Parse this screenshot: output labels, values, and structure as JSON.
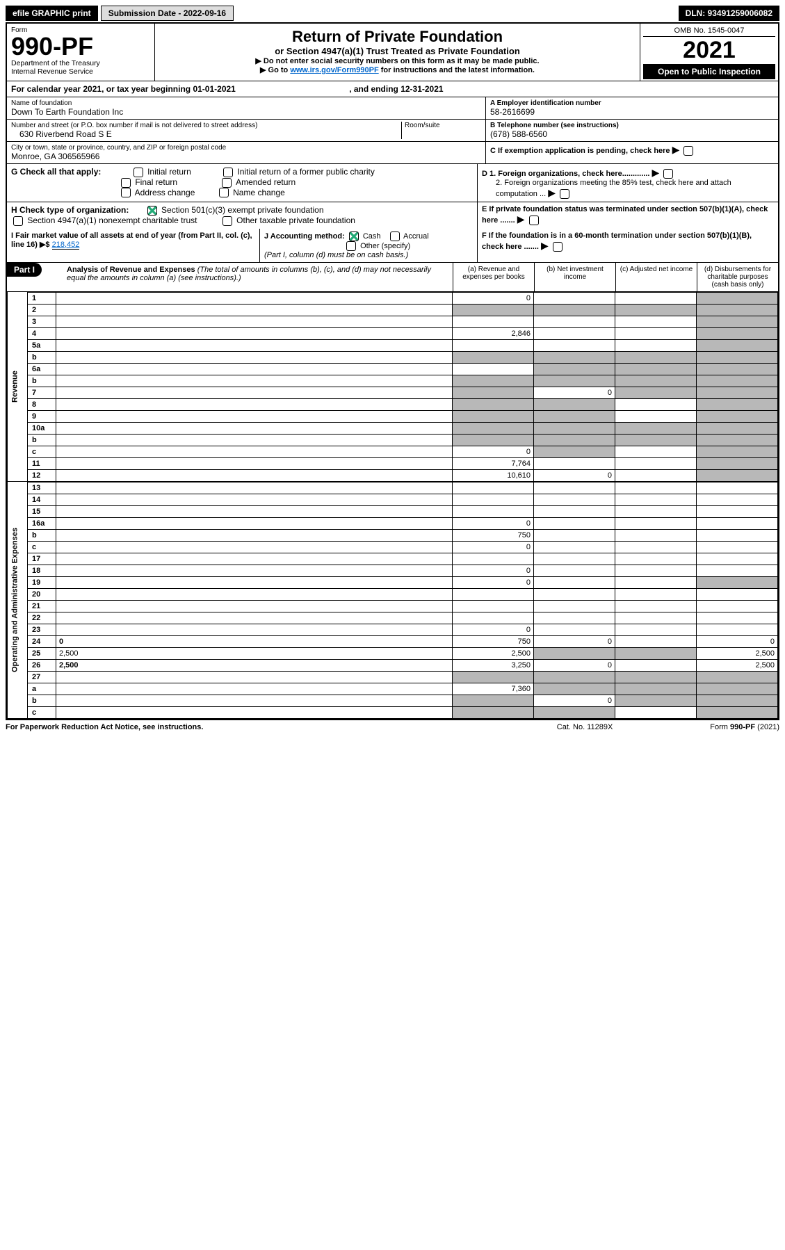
{
  "top": {
    "efile": "efile GRAPHIC print",
    "sub_label": "Submission Date - 2022-09-16",
    "dln": "DLN: 93491259006082"
  },
  "header": {
    "form_word": "Form",
    "form_no": "990-PF",
    "dept1": "Department of the Treasury",
    "dept2": "Internal Revenue Service",
    "title": "Return of Private Foundation",
    "subtitle": "or Section 4947(a)(1) Trust Treated as Private Foundation",
    "instr1": "▶ Do not enter social security numbers on this form as it may be made public.",
    "instr2_pre": "▶ Go to ",
    "instr2_link": "www.irs.gov/Form990PF",
    "instr2_post": " for instructions and the latest information.",
    "omb": "OMB No. 1545-0047",
    "year": "2021",
    "open": "Open to Public Inspection"
  },
  "cal": {
    "text_pre": "For calendar year 2021, or tax year beginning ",
    "begin": "01-01-2021",
    "mid": " , and ending ",
    "end": "12-31-2021"
  },
  "name": {
    "label": "Name of foundation",
    "value": "Down To Earth Foundation Inc"
  },
  "addr": {
    "label": "Number and street (or P.O. box number if mail is not delivered to street address)",
    "value": "630 Riverbend Road S E",
    "room_label": "Room/suite"
  },
  "city": {
    "label": "City or town, state or province, country, and ZIP or foreign postal code",
    "value": "Monroe, GA  306565966"
  },
  "ein": {
    "label": "A Employer identification number",
    "value": "58-2616699"
  },
  "phone": {
    "label": "B Telephone number (see instructions)",
    "value": "(678) 588-6560"
  },
  "c": "C If exemption application is pending, check here",
  "d1": "D 1. Foreign organizations, check here.............",
  "d2": "2. Foreign organizations meeting the 85% test, check here and attach computation ...",
  "e": "E If private foundation status was terminated under section 507(b)(1)(A), check here .......",
  "f": "F If the foundation is in a 60-month termination under section 507(b)(1)(B), check here .......",
  "g": {
    "label": "G Check all that apply:",
    "opts": [
      "Initial return",
      "Initial return of a former public charity",
      "Final return",
      "Amended return",
      "Address change",
      "Name change"
    ]
  },
  "h": {
    "label": "H Check type of organization:",
    "opt1": "Section 501(c)(3) exempt private foundation",
    "opt2": "Section 4947(a)(1) nonexempt charitable trust",
    "opt3": "Other taxable private foundation"
  },
  "i": {
    "label": "I Fair market value of all assets at end of year (from Part II, col. (c), line 16) ▶$ ",
    "value": "218,452"
  },
  "j": {
    "label": "J Accounting method:",
    "cash": "Cash",
    "accrual": "Accrual",
    "other": "Other (specify)",
    "note": "(Part I, column (d) must be on cash basis.)"
  },
  "part1": {
    "label": "Part I",
    "title": "Analysis of Revenue and Expenses",
    "note": "(The total of amounts in columns (b), (c), and (d) may not necessarily equal the amounts in column (a) (see instructions).)",
    "col_a": "(a) Revenue and expenses per books",
    "col_b": "(b) Net investment income",
    "col_c": "(c) Adjusted net income",
    "col_d": "(d) Disbursements for charitable purposes (cash basis only)"
  },
  "sections": {
    "revenue": "Revenue",
    "expenses": "Operating and Administrative Expenses"
  },
  "rows": [
    {
      "n": "1",
      "d": "",
      "a": "0",
      "b": "",
      "c": "",
      "shade_d": true
    },
    {
      "n": "2",
      "d": "",
      "a": "",
      "b": "",
      "c": "",
      "shade_a": true,
      "shade_b": true,
      "shade_c": true,
      "shade_d": true,
      "bold_not": true
    },
    {
      "n": "3",
      "d": "",
      "a": "",
      "b": "",
      "c": "",
      "shade_d": true
    },
    {
      "n": "4",
      "d": "",
      "a": "2,846",
      "b": "",
      "c": "",
      "shade_d": true
    },
    {
      "n": "5a",
      "d": "",
      "a": "",
      "b": "",
      "c": "",
      "shade_d": true
    },
    {
      "n": "b",
      "d": "",
      "a": "",
      "b": "",
      "c": "",
      "shade_a": true,
      "shade_b": true,
      "shade_c": true,
      "shade_d": true,
      "inline_box": true
    },
    {
      "n": "6a",
      "d": "",
      "a": "",
      "b": "",
      "c": "",
      "shade_b": true,
      "shade_c": true,
      "shade_d": true
    },
    {
      "n": "b",
      "d": "",
      "a": "",
      "b": "",
      "c": "",
      "shade_a": true,
      "shade_b": true,
      "shade_c": true,
      "shade_d": true,
      "inline_box": true
    },
    {
      "n": "7",
      "d": "",
      "a": "",
      "b": "0",
      "c": "",
      "shade_a": true,
      "shade_c": true,
      "shade_d": true
    },
    {
      "n": "8",
      "d": "",
      "a": "",
      "b": "",
      "c": "",
      "shade_a": true,
      "shade_b": true,
      "shade_d": true
    },
    {
      "n": "9",
      "d": "",
      "a": "",
      "b": "",
      "c": "",
      "shade_a": true,
      "shade_b": true,
      "shade_d": true
    },
    {
      "n": "10a",
      "d": "",
      "a": "",
      "b": "",
      "c": "",
      "shade_a": true,
      "shade_b": true,
      "shade_c": true,
      "shade_d": true,
      "inline_box": true
    },
    {
      "n": "b",
      "d": "",
      "a": "",
      "b": "",
      "c": "",
      "shade_a": true,
      "shade_b": true,
      "shade_c": true,
      "shade_d": true,
      "inline_box": true
    },
    {
      "n": "c",
      "d": "",
      "a": "0",
      "b": "",
      "c": "",
      "shade_b": true,
      "shade_d": true
    },
    {
      "n": "11",
      "d": "",
      "a": "7,764",
      "b": "",
      "c": "",
      "shade_d": true
    },
    {
      "n": "12",
      "d": "",
      "a": "10,610",
      "b": "0",
      "c": "",
      "shade_d": true,
      "bold": true
    }
  ],
  "exp_rows": [
    {
      "n": "13",
      "d": "",
      "a": "",
      "b": "",
      "c": ""
    },
    {
      "n": "14",
      "d": "",
      "a": "",
      "b": "",
      "c": ""
    },
    {
      "n": "15",
      "d": "",
      "a": "",
      "b": "",
      "c": ""
    },
    {
      "n": "16a",
      "d": "",
      "a": "0",
      "b": "",
      "c": ""
    },
    {
      "n": "b",
      "d": "",
      "a": "750",
      "b": "",
      "c": ""
    },
    {
      "n": "c",
      "d": "",
      "a": "0",
      "b": "",
      "c": ""
    },
    {
      "n": "17",
      "d": "",
      "a": "",
      "b": "",
      "c": ""
    },
    {
      "n": "18",
      "d": "",
      "a": "0",
      "b": "",
      "c": ""
    },
    {
      "n": "19",
      "d": "",
      "a": "0",
      "b": "",
      "c": "",
      "shade_d": true
    },
    {
      "n": "20",
      "d": "",
      "a": "",
      "b": "",
      "c": ""
    },
    {
      "n": "21",
      "d": "",
      "a": "",
      "b": "",
      "c": ""
    },
    {
      "n": "22",
      "d": "",
      "a": "",
      "b": "",
      "c": ""
    },
    {
      "n": "23",
      "d": "",
      "a": "0",
      "b": "",
      "c": ""
    },
    {
      "n": "24",
      "d": "0",
      "a": "750",
      "b": "0",
      "c": "",
      "bold": true
    },
    {
      "n": "25",
      "d": "2,500",
      "a": "2,500",
      "b": "",
      "c": "",
      "shade_b": true,
      "shade_c": true
    },
    {
      "n": "26",
      "d": "2,500",
      "a": "3,250",
      "b": "0",
      "c": "",
      "bold": true
    },
    {
      "n": "27",
      "d": "",
      "a": "",
      "b": "",
      "c": "",
      "shade_a": true,
      "shade_b": true,
      "shade_c": true,
      "shade_d": true
    },
    {
      "n": "a",
      "d": "",
      "a": "7,360",
      "b": "",
      "c": "",
      "shade_b": true,
      "shade_c": true,
      "shade_d": true,
      "bold": true
    },
    {
      "n": "b",
      "d": "",
      "a": "",
      "b": "0",
      "c": "",
      "shade_a": true,
      "shade_c": true,
      "shade_d": true,
      "bold": true
    },
    {
      "n": "c",
      "d": "",
      "a": "",
      "b": "",
      "c": "",
      "shade_a": true,
      "shade_b": true,
      "shade_d": true,
      "bold": true
    }
  ],
  "footer": {
    "left": "For Paperwork Reduction Act Notice, see instructions.",
    "mid": "Cat. No. 11289X",
    "right": "Form 990-PF (2021)"
  }
}
